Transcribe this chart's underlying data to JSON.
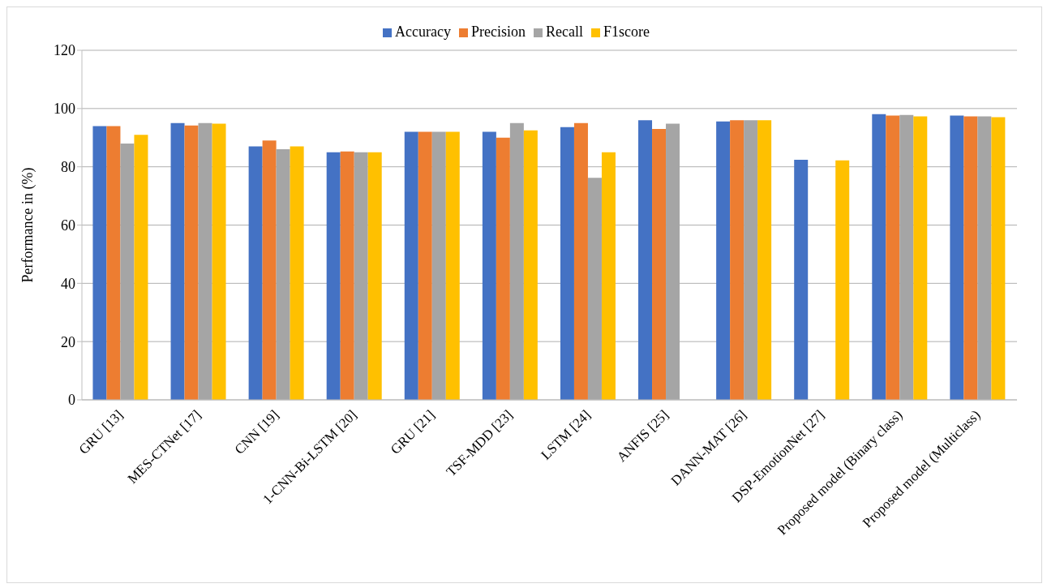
{
  "chart_data": {
    "type": "bar",
    "ylabel": "Performance in (%)",
    "categories": [
      "GRU [13]",
      "MES-CTNet [17]",
      "CNN [19]",
      "1-CNN-Bi-LSTM [20]",
      "GRU [21]",
      "TSF-MDD [23]",
      "LSTM [24]",
      "ANFIS [25]",
      "DANN-MAT [26]",
      "DSP-EmotionNet [27]",
      "Proposed model (Binary class)",
      "Proposed model (Multiclass)"
    ],
    "series": [
      {
        "name": "Accuracy",
        "color": "#4472c4",
        "values": [
          94,
          95,
          87,
          85,
          92,
          92,
          93.6,
          96,
          95.6,
          82.4,
          98.1,
          97.6
        ]
      },
      {
        "name": "Precision",
        "color": "#ed7d31",
        "values": [
          94,
          94.2,
          89,
          85.3,
          92,
          90,
          95,
          93,
          96,
          null,
          97.6,
          97.3
        ]
      },
      {
        "name": "Recall",
        "color": "#a5a5a5",
        "values": [
          88,
          95,
          86,
          85,
          92,
          95,
          76.2,
          94.8,
          96,
          null,
          97.8,
          97.3
        ]
      },
      {
        "name": "F1score",
        "color": "#ffc000",
        "values": [
          91,
          94.8,
          87,
          85,
          92,
          92.5,
          85,
          null,
          96,
          82.2,
          97.3,
          97
        ]
      }
    ],
    "ylim": [
      0,
      120
    ],
    "yticks": [
      0,
      20,
      40,
      60,
      80,
      100,
      120
    ],
    "grid": "y",
    "legend": "top"
  }
}
